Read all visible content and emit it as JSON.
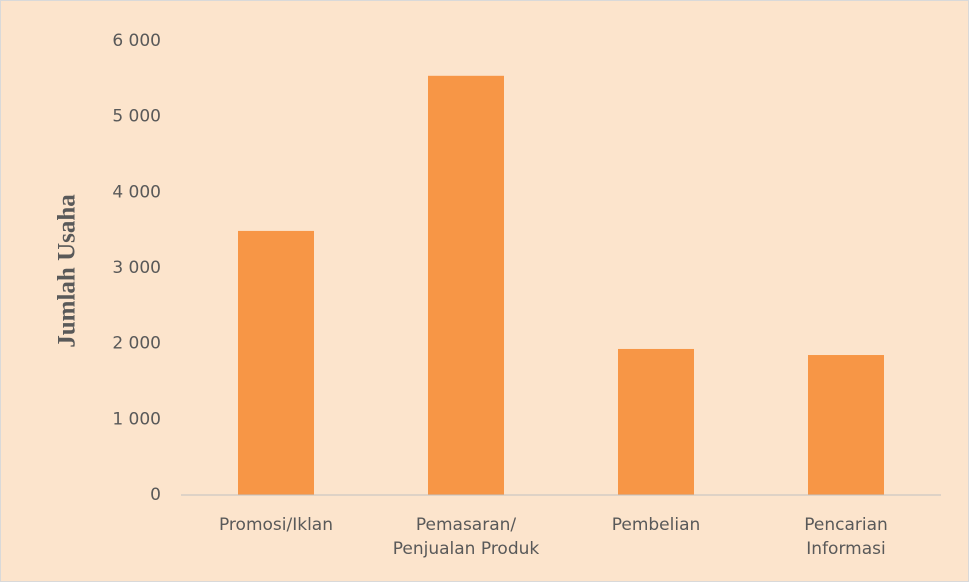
{
  "chart_data": {
    "type": "bar",
    "y_label": "Jumlah Usaha",
    "categories": [
      "Promosi/Iklan",
      "Pemasaran/\nPenjualan Produk",
      "Pembelian",
      "Pencarian\nInformasi"
    ],
    "values": [
      3490,
      5540,
      1930,
      1850
    ],
    "color": "#f79646",
    "ylim": [
      0,
      6000
    ],
    "yticks": [
      0,
      {
        "value": 1000,
        "label": "1 000"
      },
      {
        "value": 2000,
        "label": "2 000"
      },
      {
        "value": 3000,
        "label": "3 000"
      },
      {
        "value": 4000,
        "label": "4 000"
      },
      {
        "value": 5000,
        "label": "5 000"
      },
      {
        "value": 6000,
        "label": "6 000"
      }
    ],
    "grid": false
  }
}
